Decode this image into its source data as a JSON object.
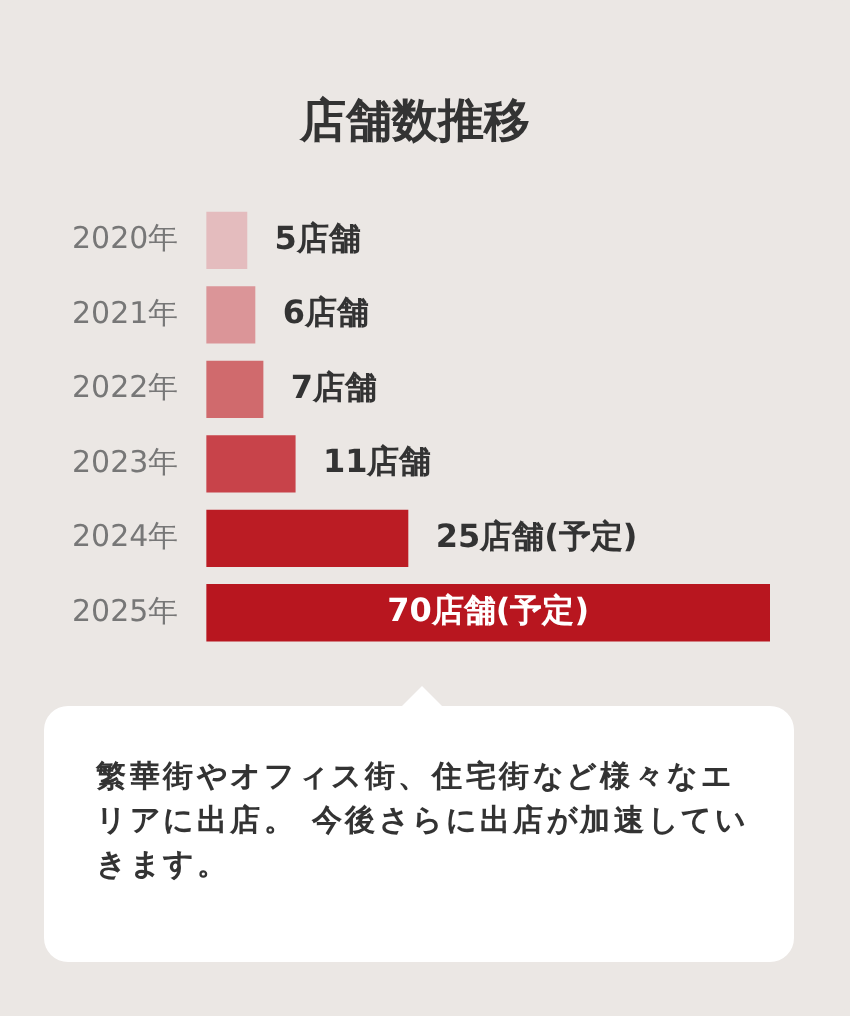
{
  "chart_data": {
    "type": "bar",
    "orientation": "horizontal",
    "title": "店舗数推移",
    "categories": [
      "2020年",
      "2021年",
      "2022年",
      "2023年",
      "2024年",
      "2025年"
    ],
    "values": [
      5,
      6,
      7,
      11,
      25,
      70
    ],
    "colors": [
      "#e4bcbe",
      "#db9598",
      "#d06a6d",
      "#c8434a",
      "#bb1c24",
      "#b8161f"
    ],
    "value_labels": [
      "5店舗",
      "6店舗",
      "7店舗",
      "11店舗",
      "25店舗(予定)",
      "70店舗(予定)"
    ],
    "legend": false,
    "annotations": [
      "繁華街やオフィス街、住宅街など様々なエリアに出店。 今後さらに出店が加速していきます。"
    ]
  }
}
